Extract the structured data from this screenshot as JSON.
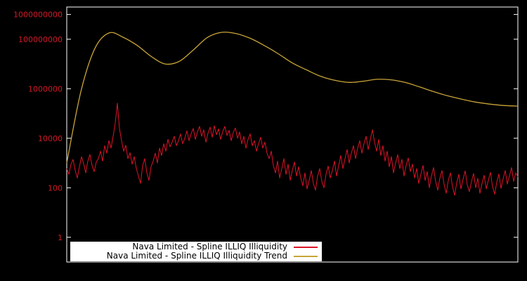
{
  "page": {
    "background": "#000000"
  },
  "chart_data": {
    "type": "line",
    "title": "",
    "xlabel": "",
    "ylabel": "",
    "y_scale": "log",
    "ylim": [
      0.1,
      2000000000
    ],
    "grid": false,
    "plot_border_color": "#ffffff",
    "tick_label_color": "#d01a28",
    "y_ticks": [
      {
        "value": 1,
        "label": "1"
      },
      {
        "value": 100,
        "label": "100"
      },
      {
        "value": 10000,
        "label": "10000"
      },
      {
        "value": 1000000,
        "label": "1000000"
      },
      {
        "value": 100000000,
        "label": "100000000"
      },
      {
        "value": 1000000000,
        "label": "1000000000"
      }
    ],
    "legend": {
      "position": "bottom-left-inside",
      "background": "#ffffff",
      "text_color": "#000000"
    },
    "series": [
      {
        "name": "Nava Limited - Spline ILLIQ Illiquidity",
        "color": "#dc1428",
        "style": "noisy-line",
        "values": [
          600,
          350,
          900,
          1400,
          500,
          250,
          700,
          1800,
          950,
          400,
          1200,
          2200,
          800,
          450,
          1100,
          1500,
          3000,
          1200,
          5000,
          2500,
          8000,
          4000,
          12000,
          40000,
          260000,
          25000,
          8000,
          3000,
          5200,
          1500,
          2600,
          900,
          1800,
          600,
          300,
          150,
          800,
          1500,
          400,
          200,
          700,
          1200,
          2500,
          1000,
          4000,
          2000,
          6000,
          3000,
          9000,
          4500,
          7000,
          12000,
          5000,
          8000,
          15000,
          6000,
          10000,
          20000,
          8000,
          15000,
          25000,
          9000,
          18000,
          30000,
          12000,
          22000,
          7000,
          16000,
          28000,
          11000,
          32000,
          14000,
          24000,
          9000,
          19000,
          30000,
          13000,
          21000,
          8000,
          17000,
          26000,
          10000,
          18000,
          6000,
          12000,
          4000,
          9000,
          15000,
          5000,
          8000,
          3000,
          6000,
          11000,
          4000,
          7000,
          2500,
          1500,
          3000,
          800,
          400,
          1200,
          250,
          600,
          1500,
          350,
          900,
          200,
          500,
          1100,
          300,
          700,
          250,
          120,
          400,
          90,
          200,
          500,
          150,
          80,
          300,
          600,
          180,
          100,
          350,
          750,
          250,
          500,
          1200,
          300,
          800,
          2000,
          600,
          1500,
          3500,
          1000,
          2500,
          5000,
          1500,
          4000,
          8000,
          2500,
          6000,
          12000,
          3500,
          9000,
          22000,
          7000,
          3000,
          9000,
          2000,
          5000,
          1200,
          3000,
          700,
          1800,
          400,
          1000,
          2200,
          600,
          1400,
          300,
          800,
          1600,
          450,
          900,
          250,
          600,
          150,
          350,
          800,
          200,
          450,
          100,
          300,
          650,
          180,
          80,
          250,
          500,
          140,
          60,
          200,
          400,
          110,
          50,
          160,
          350,
          90,
          220,
          480,
          130,
          70,
          180,
          380,
          100,
          240,
          60,
          150,
          320,
          90,
          200,
          420,
          110,
          55,
          170,
          360,
          95,
          230,
          500,
          140,
          300,
          650,
          180,
          400,
          280
        ]
      },
      {
        "name": "Nava Limited - Spline ILLIQ Illiquidity Trend",
        "color": "#c8a438",
        "style": "smooth-line",
        "values": [
          1000,
          770000,
          43000000,
          180000000,
          120000000,
          56000000,
          20000000,
          10000000,
          13000000,
          38000000,
          120000000,
          190000000,
          170000000,
          110000000,
          56000000,
          26000000,
          11000000,
          5800000,
          3200000,
          2200000,
          1800000,
          2000000,
          2400000,
          2300000,
          1800000,
          1200000,
          770000,
          520000,
          380000,
          290000,
          240000,
          210000,
          200000
        ]
      }
    ]
  }
}
